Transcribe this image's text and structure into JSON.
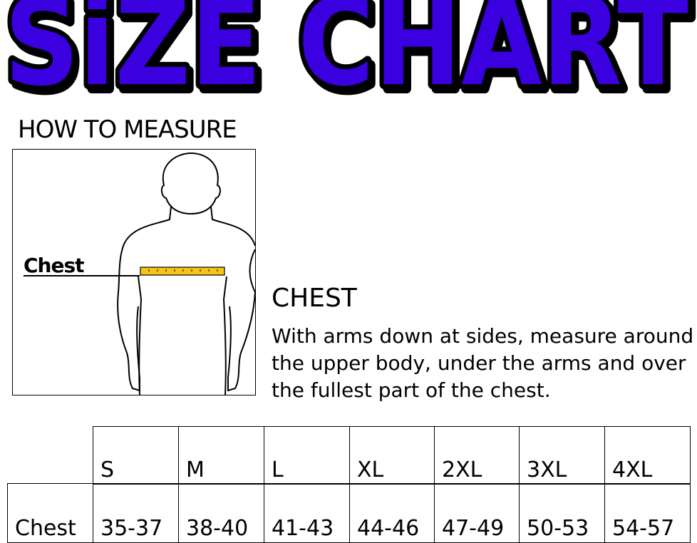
{
  "title": "SiZE CHART",
  "colors": {
    "title_fill": "#3a00e0",
    "title_outline": "#000000",
    "tape": "#f5c518"
  },
  "how_to_measure": {
    "heading": "HOW TO MEASURE",
    "figure_label": "Chest",
    "icon": "body-outline-with-measuring-tape"
  },
  "instruction": {
    "heading": "CHEST",
    "text": "With arms down at sides, measure around the upper body, under the arms and over the fullest part of the chest."
  },
  "table": {
    "sizes": [
      "S",
      "M",
      "L",
      "XL",
      "2XL",
      "3XL",
      "4XL"
    ],
    "rows": [
      {
        "label": "Chest",
        "values": [
          "35-37",
          "38-40",
          "41-43",
          "44-46",
          "47-49",
          "50-53",
          "54-57"
        ]
      }
    ]
  }
}
